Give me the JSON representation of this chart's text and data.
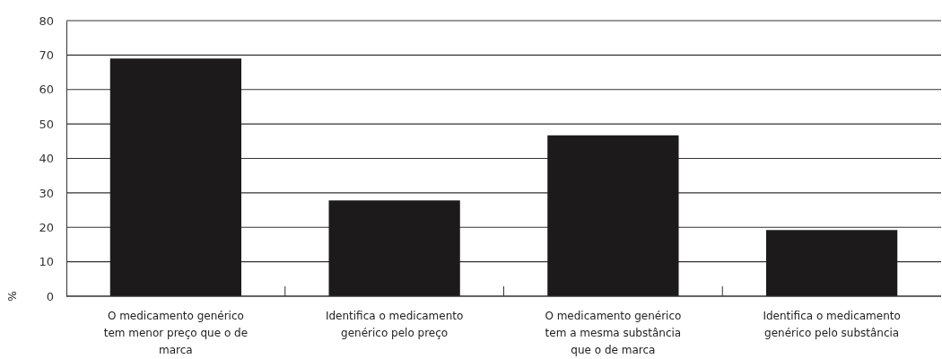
{
  "chart_data": {
    "type": "bar",
    "ylabel": "%",
    "categories": [
      "O medicamento genérico tem menor preço que o de marca",
      "Identifica o medicamento genérico pelo preço",
      "O medicamento genérico tem a mesma substância que o de marca",
      "Identifica o medicamento genérico pelo substância"
    ],
    "values": [
      69,
      27.8,
      46.7,
      19.2
    ],
    "color": "#1c1a1b",
    "ylim": [
      0,
      80
    ],
    "yticks": [
      0,
      10,
      20,
      30,
      40,
      50,
      60,
      70,
      80
    ],
    "grid": "y"
  }
}
